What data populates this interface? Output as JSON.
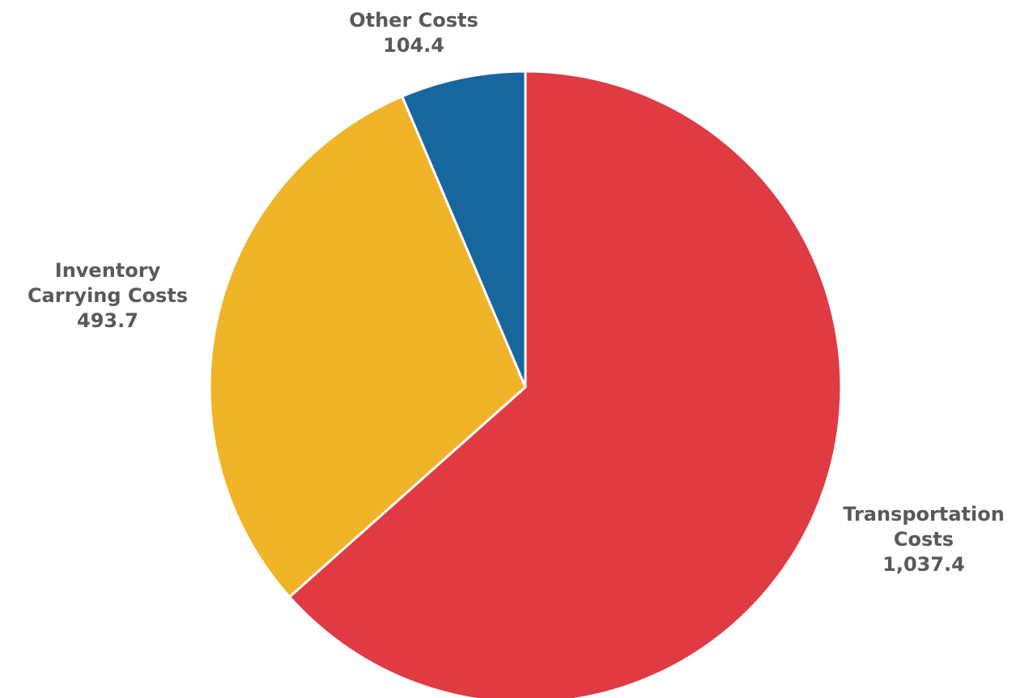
{
  "chart_data": {
    "type": "pie",
    "title": "",
    "legend": "none",
    "start_angle_deg": 0,
    "direction": "clockwise",
    "slices": [
      {
        "name": "Transportation Costs",
        "label_lines": [
          "Transportation",
          "Costs"
        ],
        "value": 1037.4,
        "value_label": "1,037.4",
        "color": "#E03A43"
      },
      {
        "name": "Inventory Carrying Costs",
        "label_lines": [
          "Inventory",
          "Carrying Costs"
        ],
        "value": 493.7,
        "value_label": "493.7",
        "color": "#F0B429"
      },
      {
        "name": "Other Costs",
        "label_lines": [
          "Other Costs"
        ],
        "value": 104.4,
        "value_label": "104.4",
        "color": "#17669D"
      }
    ]
  }
}
